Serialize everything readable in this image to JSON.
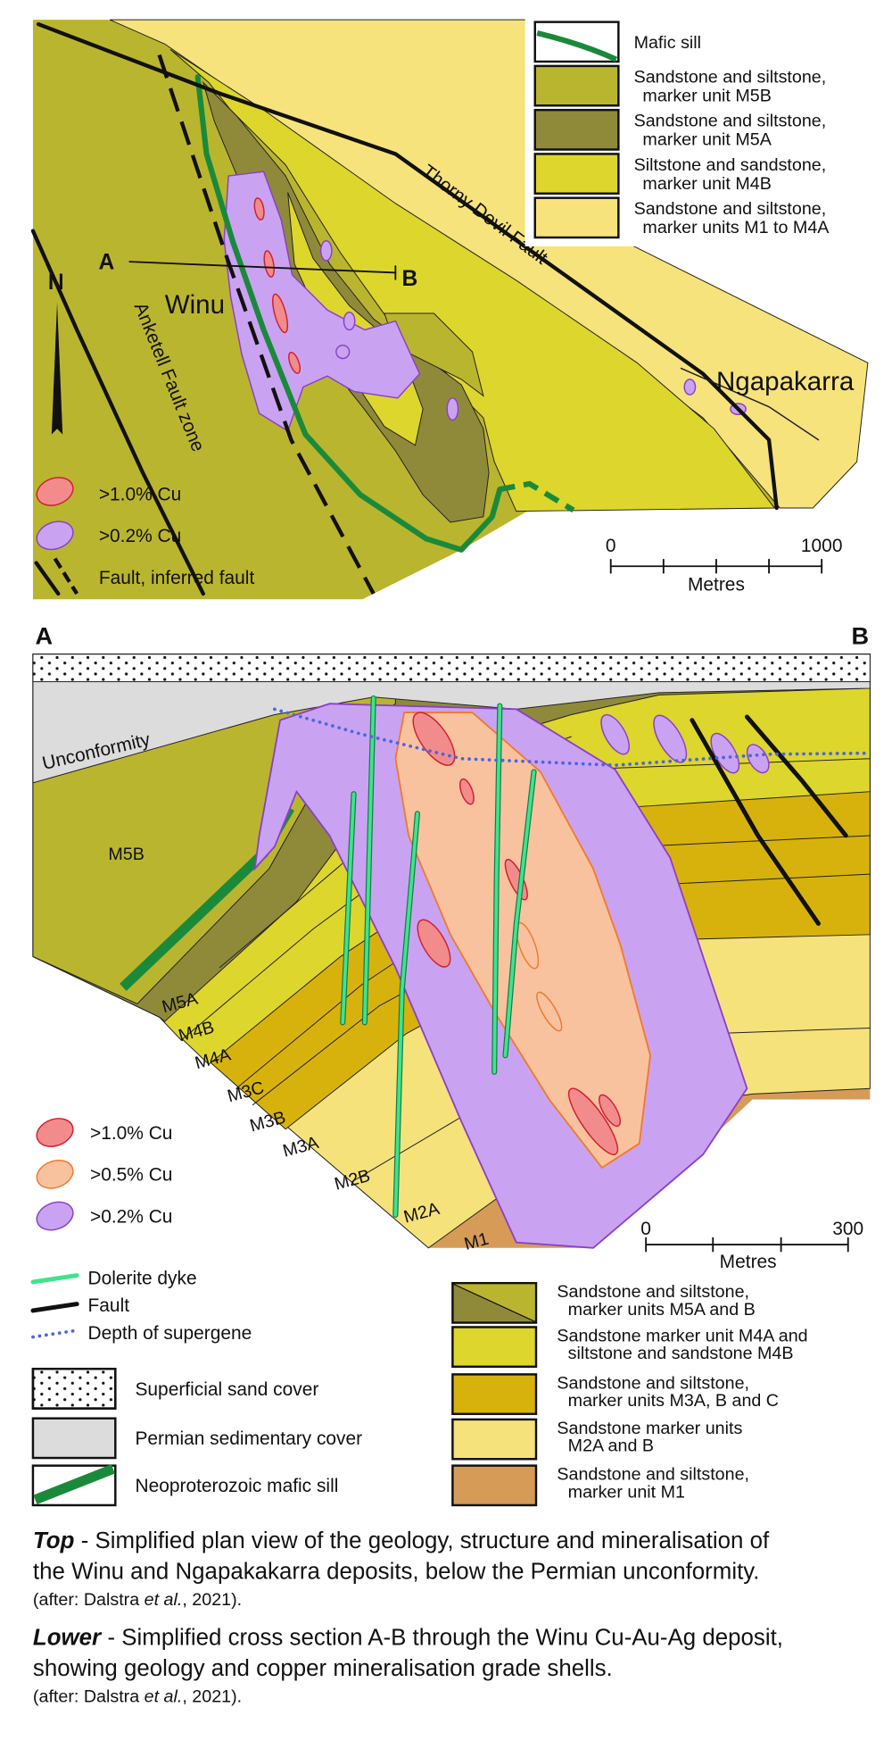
{
  "top_map": {
    "labels": {
      "section_a": "A",
      "section_b": "B",
      "north": "N",
      "winu": "Winu",
      "ngapakarra": "Ngapakarra",
      "thorny_devil_fault": "Thorny Devil Fault",
      "anketell_fault_zone": "Anketell Fault zone"
    },
    "legend": [
      {
        "lines": [
          "Mafic sill"
        ]
      },
      {
        "lines": [
          "Sandstone and siltstone,",
          "marker unit M5B"
        ]
      },
      {
        "lines": [
          "Sandstone and siltstone,",
          "marker unit M5A"
        ]
      },
      {
        "lines": [
          "Siltstone and sandstone,",
          "marker unit M4B"
        ]
      },
      {
        "lines": [
          "Sandstone and siltstone,",
          "marker units M1 to M4A"
        ]
      }
    ],
    "grade_legend": [
      ">1.0% Cu",
      ">0.2% Cu",
      "Fault, inferred fault"
    ],
    "scale": {
      "start": "0",
      "end": "1000",
      "unit": "Metres"
    }
  },
  "cross_section": {
    "labels": {
      "section_a": "A",
      "section_b": "B",
      "unconformity": "Unconformity"
    },
    "units": [
      "M5B",
      "M5A",
      "M4B",
      "M4A",
      "M3C",
      "M3B",
      "M3A",
      "M2B",
      "M2A",
      "M1"
    ],
    "grade_legend": [
      ">1.0% Cu",
      ">0.5% Cu",
      ">0.2% Cu"
    ],
    "scale": {
      "start": "0",
      "end": "300",
      "unit": "Metres"
    },
    "line_legend": [
      "Dolerite dyke",
      "Fault",
      "Depth of supergene"
    ],
    "cover_legend": [
      "Superficial sand cover",
      "Permian sedimentary cover",
      "Neoproterozoic mafic sill"
    ],
    "unit_legend": [
      {
        "lines": [
          "Sandstone and siltstone,",
          "marker units M5A and B"
        ]
      },
      {
        "lines": [
          "Sandstone marker unit M4A and",
          "siltstone and sandstone M4B"
        ]
      },
      {
        "lines": [
          "Sandstone and siltstone,",
          "marker units M3A, B and C"
        ]
      },
      {
        "lines": [
          "Sandstone marker units",
          "M2A and B"
        ]
      },
      {
        "lines": [
          "Sandstone and siltstone,",
          "marker unit M1"
        ]
      }
    ]
  },
  "captions": [
    {
      "lead": "Top",
      "lines": [
        "- Simplified plan view of the geology, structure and mineralisation of",
        "the Winu and Ngapakakarra deposits, below the Permian unconformity."
      ],
      "credit": [
        "(after: Dalstra ",
        "et al.",
        ", 2021)."
      ]
    },
    {
      "lead": "Lower",
      "lines": [
        "- Simplified cross section A-B through the Winu Cu-Au-Ag deposit,",
        "showing geology and copper mineralisation grade shells."
      ],
      "credit": [
        "(after: Dalstra ",
        "et al.",
        ", 2021)."
      ]
    }
  ]
}
